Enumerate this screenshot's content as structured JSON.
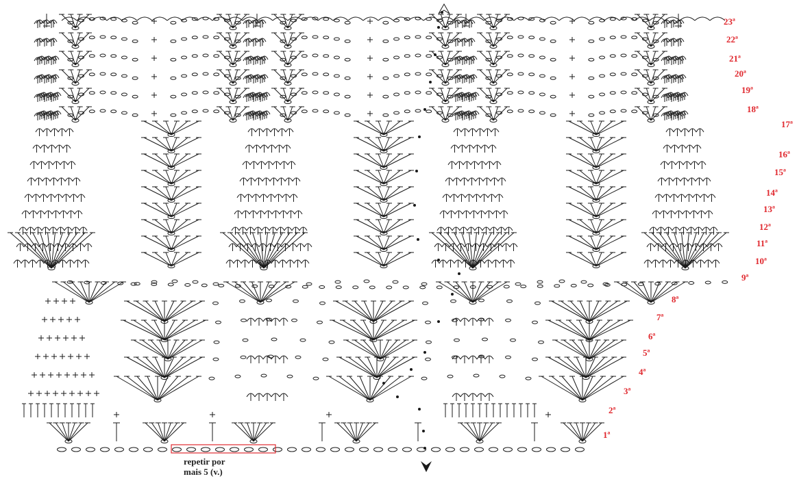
{
  "rows": [
    {
      "label": "1ª"
    },
    {
      "label": "2ª"
    },
    {
      "label": "3ª"
    },
    {
      "label": "4ª"
    },
    {
      "label": "5ª"
    },
    {
      "label": "6ª"
    },
    {
      "label": "7ª"
    },
    {
      "label": "8ª"
    },
    {
      "label": "9ª"
    },
    {
      "label": "10ª"
    },
    {
      "label": "11ª"
    },
    {
      "label": "12ª"
    },
    {
      "label": "13ª"
    },
    {
      "label": "14ª"
    },
    {
      "label": "15ª"
    },
    {
      "label": "16ª"
    },
    {
      "label": "17ª"
    },
    {
      "label": "18ª"
    },
    {
      "label": "19ª"
    },
    {
      "label": "20ª"
    },
    {
      "label": "21ª"
    },
    {
      "label": "22ª"
    },
    {
      "label": "23ª"
    }
  ],
  "repeat_note": {
    "line1": "repetir por",
    "line2": "mais 5 (v.)"
  },
  "colors": {
    "ink": "#1a1a1a",
    "accent": "#e0282e",
    "background": "#ffffff"
  }
}
